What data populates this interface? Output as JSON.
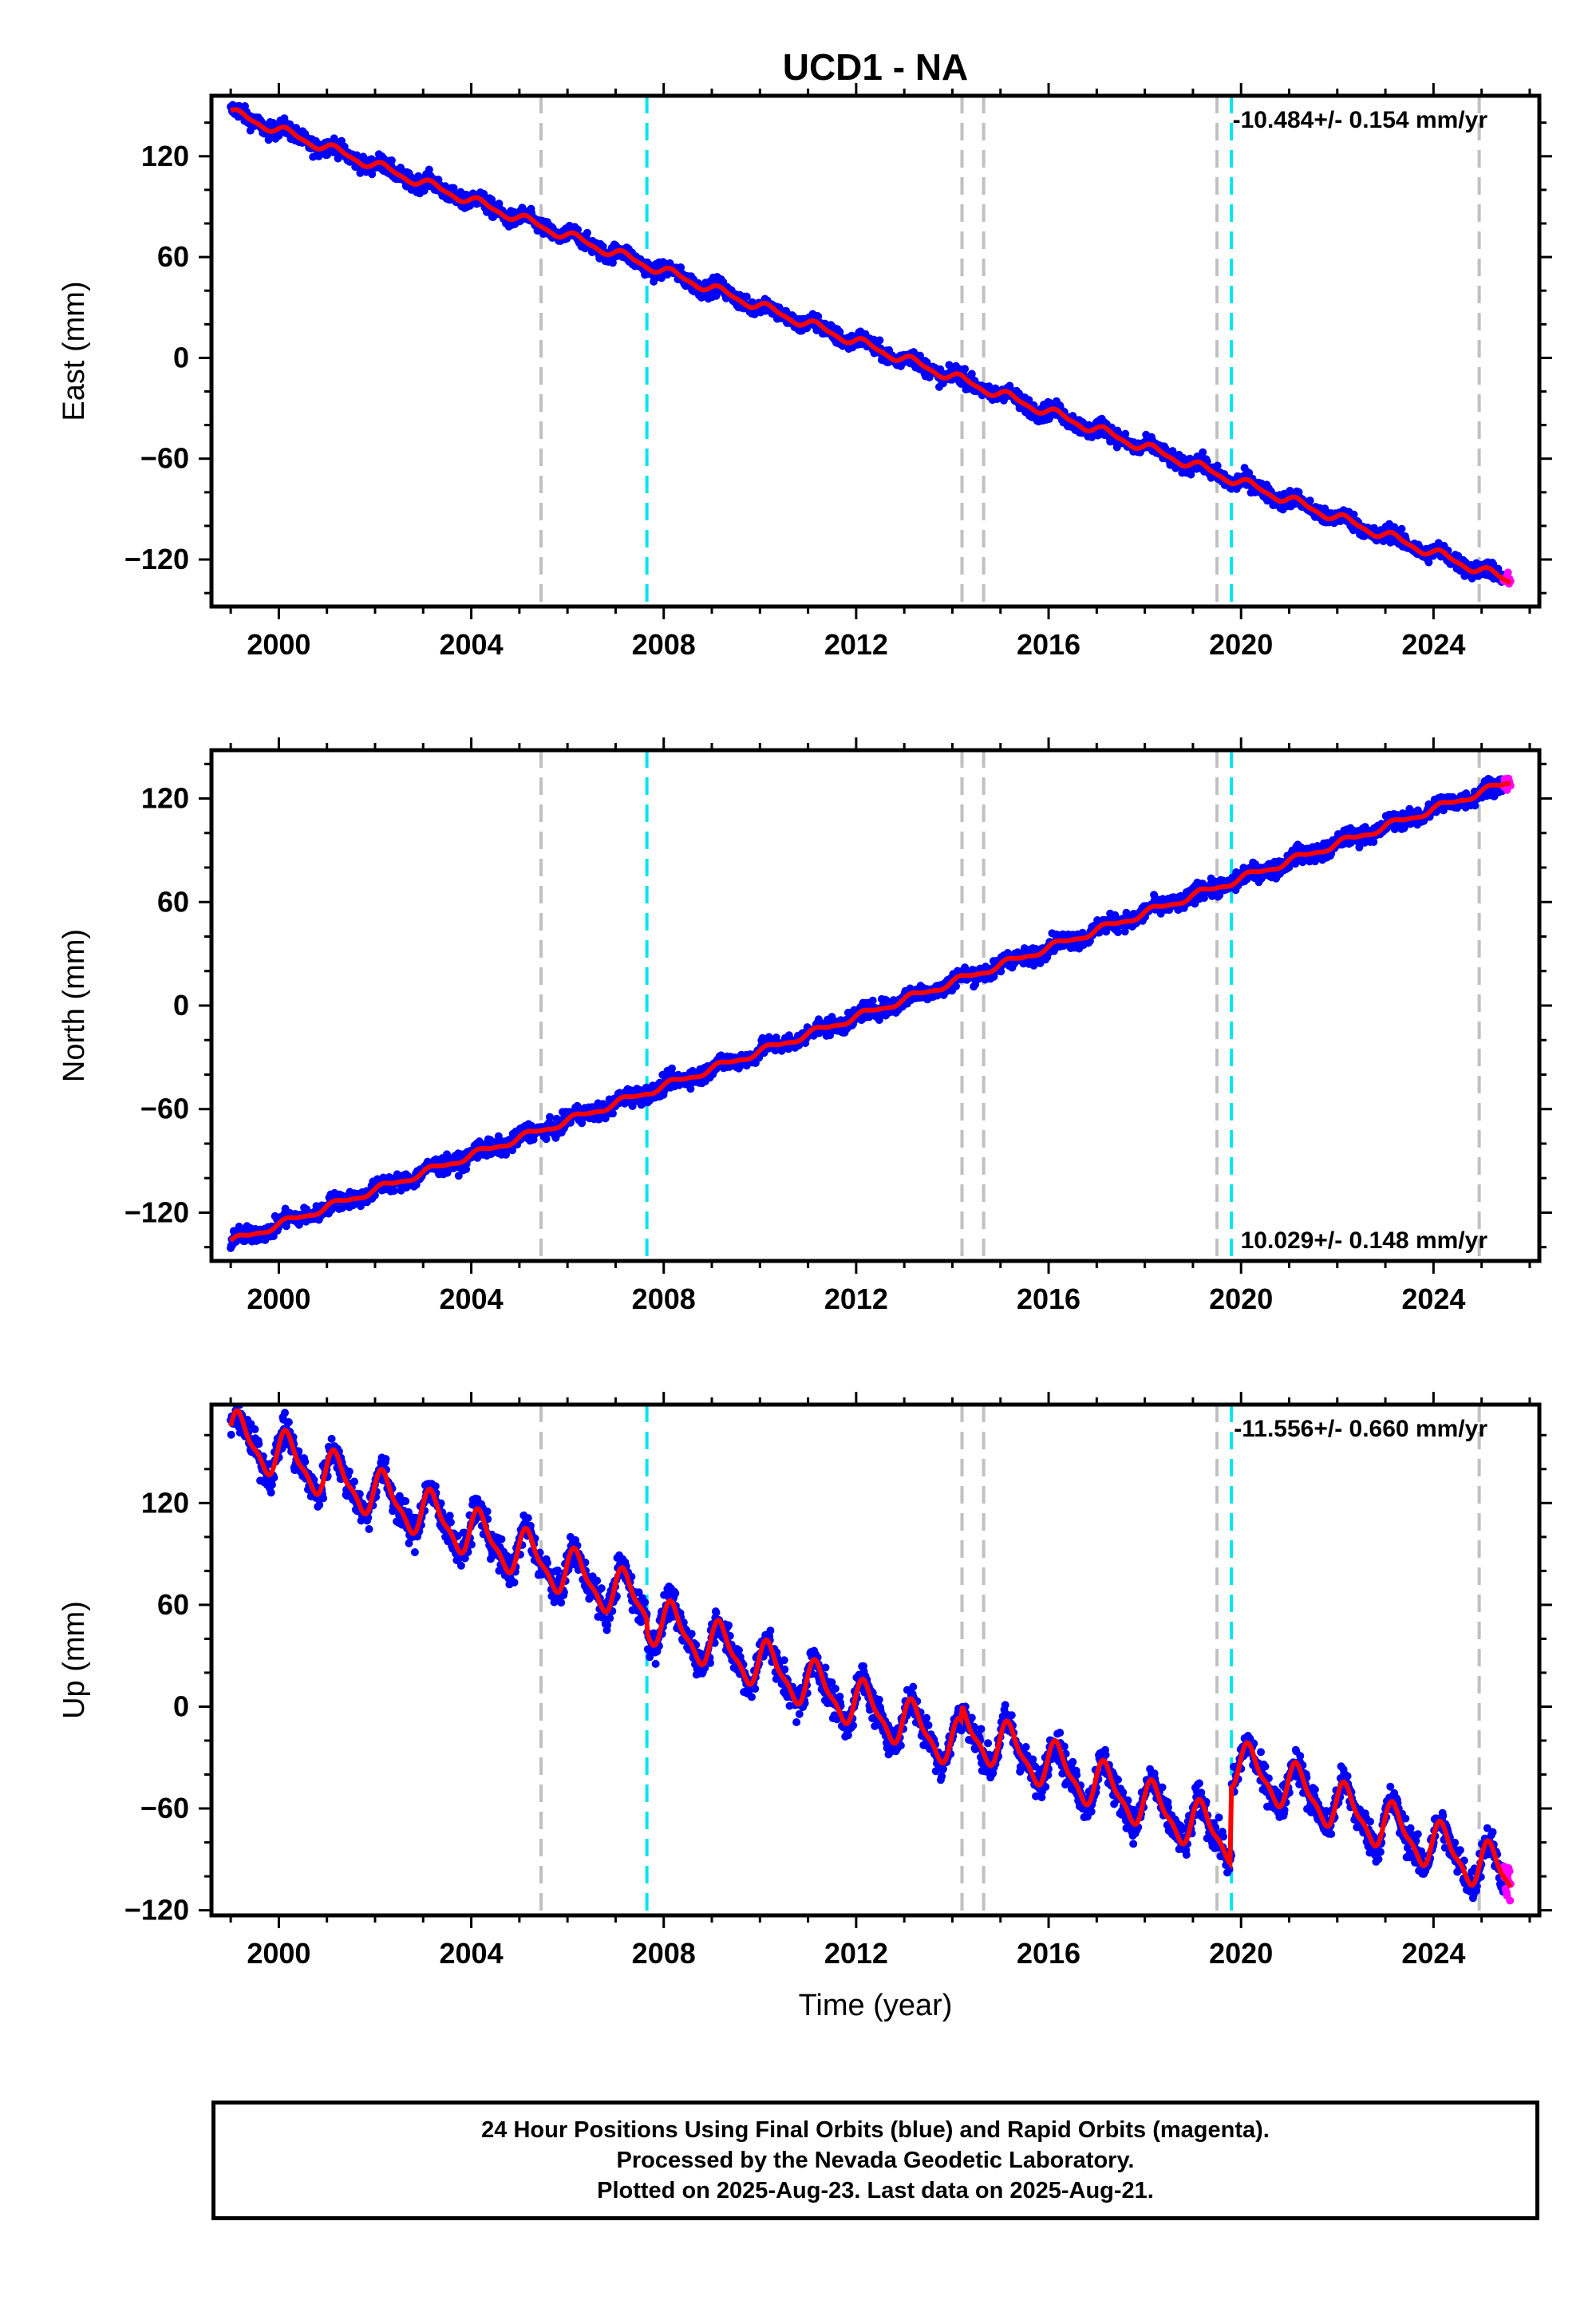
{
  "title": "UCD1 - NA",
  "footer": {
    "line1": "24 Hour Positions Using Final Orbits (blue) and Rapid Orbits (magenta).",
    "line2": "Processed by the Nevada Geodetic Laboratory.",
    "line3": "Plotted on 2025-Aug-23. Last data on 2025-Aug-21."
  },
  "colors": {
    "final_orbits": "#0000ff",
    "rapid_orbits": "#ff00ff",
    "model": "#ff0000",
    "steps_gray": "#c0c0c0",
    "steps_cyan": "#00e5ee"
  },
  "chart_data": [
    {
      "type": "scatter",
      "component": "east",
      "ylabel": "East (mm)",
      "xlabel": "",
      "xlim": [
        1998.6,
        2026.2
      ],
      "ylim": [
        -148,
        156
      ],
      "xticks": [
        2000,
        2004,
        2008,
        2012,
        2016,
        2020,
        2024
      ],
      "yticks": [
        -120,
        -60,
        0,
        60,
        120
      ],
      "rate_text": "-10.484+/- 0.154 mm/yr",
      "rate_position": "top-right",
      "start": {
        "year": 1999.0,
        "value": 146
      },
      "slope": -10.484,
      "seasonal_amplitude": 2.5,
      "scatter_noise": 3.5,
      "steps": [],
      "data_end": 2025.6,
      "rapid_start": 2025.45,
      "vlines_gray": [
        2005.45,
        2014.2,
        2014.65,
        2019.5,
        2024.95
      ],
      "vlines_cyan": [
        2007.65,
        2019.8
      ]
    },
    {
      "type": "scatter",
      "component": "north",
      "ylabel": "North (mm)",
      "xlabel": "",
      "xlim": [
        1998.6,
        2026.2
      ],
      "ylim": [
        -148,
        148
      ],
      "xticks": [
        2000,
        2004,
        2008,
        2012,
        2016,
        2020,
        2024
      ],
      "yticks": [
        -120,
        -60,
        0,
        60,
        120
      ],
      "rate_text": "10.029+/- 0.148 mm/yr",
      "rate_position": "bottom-right",
      "start": {
        "year": 1999.0,
        "value": -137
      },
      "slope": 10.029,
      "seasonal_amplitude": 1.8,
      "scatter_noise": 3.5,
      "steps": [],
      "data_end": 2025.6,
      "rapid_start": 2025.45,
      "vlines_gray": [
        2005.45,
        2014.2,
        2014.65,
        2019.5,
        2024.95
      ],
      "vlines_cyan": [
        2007.65,
        2019.8
      ]
    },
    {
      "type": "scatter",
      "component": "up",
      "ylabel": "Up (mm)",
      "xlabel": "Time (year)",
      "xlim": [
        1998.6,
        2026.2
      ],
      "ylim": [
        -123,
        178
      ],
      "xticks": [
        2000,
        2004,
        2008,
        2012,
        2016,
        2020,
        2024
      ],
      "yticks": [
        -120,
        -60,
        0,
        60,
        120
      ],
      "rate_text": "-11.556+/- 0.660 mm/yr",
      "rate_position": "top-right",
      "start": {
        "year": 1999.0,
        "value": 160
      },
      "slope": -11.556,
      "seasonal_amplitude": 13,
      "scatter_noise": 7,
      "steps": [
        {
          "year": 2007.65,
          "offset": -8
        },
        {
          "year": 2014.2,
          "offset": 10
        },
        {
          "year": 2019.8,
          "offset": 45
        }
      ],
      "data_end": 2025.6,
      "rapid_start": 2025.45,
      "vlines_gray": [
        2005.45,
        2014.2,
        2014.65,
        2019.5,
        2024.95
      ],
      "vlines_cyan": [
        2007.65,
        2019.8
      ]
    }
  ]
}
